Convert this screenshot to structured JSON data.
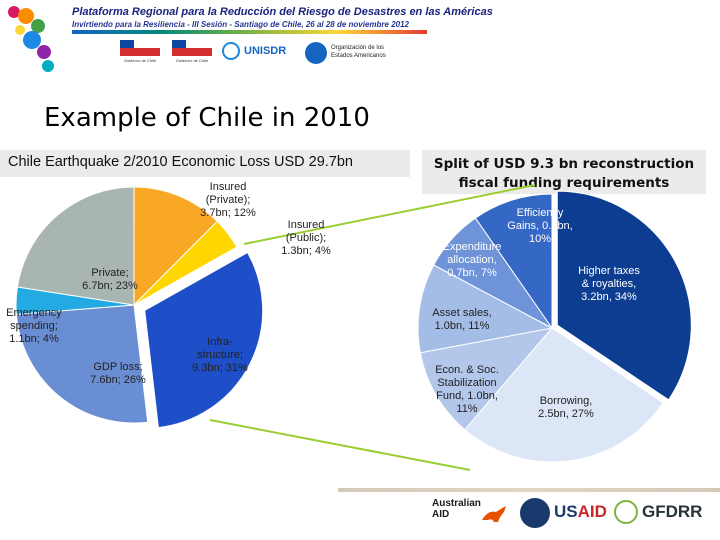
{
  "banner": {
    "title": "Plataforma Regional para la Reducción del Riesgo de Desastres en las Américas",
    "subtitle": "Invirtiendo para la Resiliencia - III Sesión - Santiago de Chile, 26 al 28 de noviembre 2012",
    "logos": {
      "gov1": "Gobierno de Chile",
      "gov2": "Gobierno de Chile",
      "unisdr": "UNISDR",
      "oea": "Organización de los Estados Americanos"
    }
  },
  "slide_title": "Example of Chile in 2010",
  "left_chart_title": "Chile Earthquake 2/2010 Economic Loss USD 29.7bn",
  "right_chart_title": [
    "Split of USD 9.3 bn reconstruction",
    "fiscal funding requirements"
  ],
  "chart_data": [
    {
      "type": "pie",
      "title": "Chile Earthquake 2/2010 Economic Loss USD 29.7bn",
      "slices": [
        {
          "label": "Insured (Private)",
          "value": 3.7,
          "percent": 12,
          "unit": "bn",
          "color": "#f9a825",
          "text": [
            "Insured",
            "(Private);",
            "3.7bn; 12%"
          ]
        },
        {
          "label": "Insured (Public)",
          "value": 1.3,
          "percent": 4,
          "unit": "bn",
          "color": "#ffd600",
          "text": [
            "Insured",
            "(Public);",
            "1.3bn; 4%"
          ]
        },
        {
          "label": "Infra-structure",
          "value": 9.3,
          "percent": 31,
          "unit": "bn",
          "color": "#1e4fc8",
          "text": [
            "Infra-",
            "structure;",
            "9.3bn; 31%"
          ]
        },
        {
          "label": "GDP loss",
          "value": 7.6,
          "percent": 26,
          "unit": "bn",
          "color": "#6a8ed3",
          "text": [
            "GDP loss;",
            "7.6bn; 26%"
          ]
        },
        {
          "label": "Emergency spending",
          "value": 1.1,
          "percent": 4,
          "unit": "bn",
          "color": "#24aae2",
          "text": [
            "Emergency",
            "spending;",
            "1.1bn; 4%"
          ]
        },
        {
          "label": "Private",
          "value": 6.7,
          "percent": 23,
          "unit": "bn",
          "color": "#a9b5b2",
          "text": [
            "Private;",
            "6.7bn; 23%"
          ]
        }
      ]
    },
    {
      "type": "pie",
      "title": "Split of USD 9.3 bn reconstruction fiscal funding requirements",
      "slices": [
        {
          "label": "Higher taxes & royalties",
          "value": 3.2,
          "percent": 34,
          "unit": "bn",
          "color": "#0d3d91",
          "text": [
            "Higher taxes",
            "& royalties,",
            "3.2bn, 34%"
          ]
        },
        {
          "label": "Borrowing",
          "value": 2.5,
          "percent": 27,
          "unit": "bn",
          "color": "#dce6f7",
          "text": [
            "Borrowing,",
            "2.5bn, 27%"
          ]
        },
        {
          "label": "Econ. & Soc. Stabilization Fund",
          "value": 1.0,
          "percent": 11,
          "unit": "bn",
          "color": "#b3c7ea",
          "text": [
            "Econ. & Soc.",
            "Stabilization",
            "Fund, 1.0bn,",
            "11%"
          ]
        },
        {
          "label": "Asset sales",
          "value": 1.0,
          "percent": 11,
          "unit": "bn",
          "color": "#a4bde6",
          "text": [
            "Asset sales,",
            "1.0bn, 11%"
          ]
        },
        {
          "label": "Expenditure allocation",
          "value": 0.7,
          "percent": 7,
          "unit": "bn",
          "color": "#6f93d8",
          "text": [
            "Expenditure",
            "allocation,",
            "0.7bn, 7%"
          ]
        },
        {
          "label": "Efficiency Gains",
          "value": 0.9,
          "percent": 10,
          "unit": "bn",
          "color": "#3568c4",
          "text": [
            "Efficiency",
            "Gains, 0.9bn,",
            "10%"
          ]
        }
      ]
    }
  ],
  "footer": {
    "aid": [
      "Australian",
      "AID"
    ],
    "usaid": [
      "US",
      "AID"
    ],
    "gfdrr": "GFDRR"
  },
  "colors": {
    "stripe_accent": "#1565c0",
    "connector": "#9acd32"
  }
}
